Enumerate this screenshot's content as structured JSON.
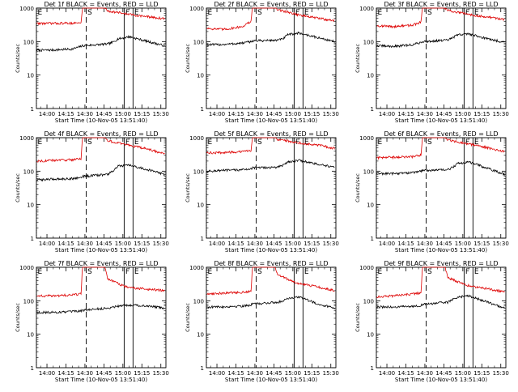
{
  "figure": {
    "colors": {
      "events": "#000000",
      "lld": "#dd0000",
      "axes": "#000000",
      "background": "#ffffff"
    },
    "ylabel": "Counts/sec",
    "xlabel": "Start Time (10-Nov-05 13:51:40)",
    "y_tick_labels": [
      "1",
      "10",
      "100",
      "1000"
    ],
    "x_tick_labels": [
      "14:00",
      "14:15",
      "14:30",
      "14:45",
      "15:00",
      "15:15",
      "15:30"
    ],
    "markers": [
      "E",
      "S",
      "F",
      "E"
    ]
  },
  "chart_data": [
    {
      "type": "line",
      "title": "Det 1f BLACK = Events, RED = LLD",
      "xlabel": "Start Time (10-Nov-05 13:51:40)",
      "ylabel": "Counts/sec",
      "yscale": "log",
      "ylim": [
        1,
        1000
      ],
      "xlim": [
        "13:51:40",
        "15:34:00"
      ],
      "series": [
        {
          "name": "Events",
          "color": "#000000",
          "x": [
            "13:52",
            "14:05",
            "14:20",
            "14:27",
            "14:28",
            "14:48",
            "14:52",
            "14:56",
            "15:05",
            "15:20",
            "15:33"
          ],
          "y": [
            55,
            56,
            60,
            72,
            75,
            85,
            95,
            120,
            140,
            100,
            75
          ]
        },
        {
          "name": "LLD",
          "color": "#dd0000",
          "x": [
            "13:52",
            "14:05",
            "14:20",
            "14:27",
            "14:28",
            "14:46",
            "14:48",
            "15:00",
            "15:05",
            "15:20",
            "15:33"
          ],
          "y": [
            350,
            350,
            355,
            360,
            1000,
            1000,
            820,
            700,
            650,
            550,
            480
          ]
        }
      ],
      "event_markers": [
        {
          "label": "E",
          "time": "13:51:40",
          "style": "dotted"
        },
        {
          "label": "S",
          "time": "14:31",
          "style": "dashed"
        },
        {
          "label": "F",
          "time": "15:01",
          "style": "solid"
        },
        {
          "label": "E",
          "time": "15:08",
          "style": "solid"
        }
      ]
    },
    {
      "type": "line",
      "title": "Det 2f BLACK = Events, RED = LLD",
      "xlabel": "Start Time (10-Nov-05 13:51:40)",
      "ylabel": "Counts/sec",
      "yscale": "log",
      "ylim": [
        1,
        1000
      ],
      "xlim": [
        "13:51:40",
        "15:34:00"
      ],
      "series": [
        {
          "name": "Events",
          "color": "#000000",
          "x": [
            "13:52",
            "14:05",
            "14:20",
            "14:27",
            "14:28",
            "14:48",
            "14:52",
            "14:56",
            "15:05",
            "15:20",
            "15:33"
          ],
          "y": [
            80,
            82,
            90,
            100,
            105,
            110,
            120,
            160,
            180,
            130,
            100
          ]
        },
        {
          "name": "LLD",
          "color": "#dd0000",
          "x": [
            "13:52",
            "14:05",
            "14:20",
            "14:27",
            "14:28",
            "14:46",
            "14:48",
            "15:00",
            "15:05",
            "15:20",
            "15:33"
          ],
          "y": [
            250,
            230,
            280,
            400,
            1000,
            1000,
            900,
            700,
            620,
            500,
            420
          ]
        }
      ],
      "event_markers": [
        {
          "label": "E",
          "time": "13:51:40",
          "style": "dotted"
        },
        {
          "label": "S",
          "time": "14:31",
          "style": "dashed"
        },
        {
          "label": "F",
          "time": "15:01",
          "style": "solid"
        },
        {
          "label": "E",
          "time": "15:08",
          "style": "solid"
        }
      ]
    },
    {
      "type": "line",
      "title": "Det 3f BLACK = Events, RED = LLD",
      "xlabel": "Start Time (10-Nov-05 13:51:40)",
      "ylabel": "Counts/sec",
      "yscale": "log",
      "ylim": [
        1,
        1000
      ],
      "xlim": [
        "13:51:40",
        "15:34:00"
      ],
      "series": [
        {
          "name": "Events",
          "color": "#000000",
          "x": [
            "13:52",
            "14:05",
            "14:20",
            "14:27",
            "14:28",
            "14:48",
            "14:52",
            "14:56",
            "15:05",
            "15:20",
            "15:33"
          ],
          "y": [
            75,
            72,
            80,
            95,
            100,
            110,
            130,
            160,
            170,
            120,
            95
          ]
        },
        {
          "name": "LLD",
          "color": "#dd0000",
          "x": [
            "13:52",
            "14:05",
            "14:20",
            "14:27",
            "14:28",
            "14:46",
            "14:48",
            "15:00",
            "15:05",
            "15:20",
            "15:33"
          ],
          "y": [
            300,
            280,
            310,
            380,
            1000,
            1000,
            850,
            700,
            650,
            540,
            460
          ]
        }
      ],
      "event_markers": [
        {
          "label": "E",
          "time": "13:51:40",
          "style": "dotted"
        },
        {
          "label": "S",
          "time": "14:31",
          "style": "dashed"
        },
        {
          "label": "F",
          "time": "15:01",
          "style": "solid"
        },
        {
          "label": "E",
          "time": "15:08",
          "style": "solid"
        }
      ]
    },
    {
      "type": "line",
      "title": "Det 4f BLACK = Events, RED = LLD",
      "xlabel": "Start Time (10-Nov-05 13:51:40)",
      "ylabel": "Counts/sec",
      "yscale": "log",
      "ylim": [
        1,
        1000
      ],
      "xlim": [
        "13:51:40",
        "15:34:00"
      ],
      "series": [
        {
          "name": "Events",
          "color": "#000000",
          "x": [
            "13:52",
            "14:05",
            "14:20",
            "14:27",
            "14:28",
            "14:48",
            "14:52",
            "14:56",
            "15:05",
            "15:20",
            "15:33"
          ],
          "y": [
            55,
            58,
            60,
            65,
            70,
            80,
            100,
            140,
            150,
            110,
            80
          ]
        },
        {
          "name": "LLD",
          "color": "#dd0000",
          "x": [
            "13:52",
            "14:05",
            "14:20",
            "14:27",
            "14:28",
            "14:46",
            "14:48",
            "15:00",
            "15:05",
            "15:20",
            "15:33"
          ],
          "y": [
            200,
            210,
            220,
            240,
            1000,
            1000,
            800,
            650,
            600,
            450,
            330
          ]
        }
      ],
      "event_markers": [
        {
          "label": "E",
          "time": "13:51:40",
          "style": "dotted"
        },
        {
          "label": "S",
          "time": "14:31",
          "style": "dashed"
        },
        {
          "label": "F",
          "time": "15:01",
          "style": "solid"
        },
        {
          "label": "E",
          "time": "15:08",
          "style": "solid"
        }
      ]
    },
    {
      "type": "line",
      "title": "Det 5f BLACK = Events, RED = LLD",
      "xlabel": "Start Time (10-Nov-05 13:51:40)",
      "ylabel": "Counts/sec",
      "yscale": "log",
      "ylim": [
        1,
        1000
      ],
      "xlim": [
        "13:51:40",
        "15:34:00"
      ],
      "series": [
        {
          "name": "Events",
          "color": "#000000",
          "x": [
            "13:52",
            "14:05",
            "14:20",
            "14:27",
            "14:28",
            "14:48",
            "14:52",
            "14:56",
            "15:05",
            "15:20",
            "15:33"
          ],
          "y": [
            100,
            105,
            110,
            120,
            125,
            130,
            150,
            190,
            210,
            160,
            130
          ]
        },
        {
          "name": "LLD",
          "color": "#dd0000",
          "x": [
            "13:52",
            "14:05",
            "14:20",
            "14:27",
            "14:28",
            "14:46",
            "14:48",
            "15:00",
            "15:05",
            "15:20",
            "15:33"
          ],
          "y": [
            350,
            360,
            380,
            420,
            1000,
            1000,
            900,
            750,
            700,
            600,
            480
          ]
        }
      ],
      "event_markers": [
        {
          "label": "E",
          "time": "13:51:40",
          "style": "dotted"
        },
        {
          "label": "S",
          "time": "14:31",
          "style": "dashed"
        },
        {
          "label": "F",
          "time": "15:01",
          "style": "solid"
        },
        {
          "label": "E",
          "time": "15:08",
          "style": "solid"
        }
      ]
    },
    {
      "type": "line",
      "title": "Det 6f BLACK = Events, RED = LLD",
      "xlabel": "Start Time (10-Nov-05 13:51:40)",
      "ylabel": "Counts/sec",
      "yscale": "log",
      "ylim": [
        1,
        1000
      ],
      "xlim": [
        "13:51:40",
        "15:34:00"
      ],
      "series": [
        {
          "name": "Events",
          "color": "#000000",
          "x": [
            "13:52",
            "14:05",
            "14:20",
            "14:27",
            "14:28",
            "14:48",
            "14:52",
            "14:56",
            "15:05",
            "15:20",
            "15:33"
          ],
          "y": [
            85,
            85,
            90,
            100,
            105,
            110,
            130,
            170,
            190,
            120,
            80
          ]
        },
        {
          "name": "LLD",
          "color": "#dd0000",
          "x": [
            "13:52",
            "14:05",
            "14:20",
            "14:27",
            "14:28",
            "14:46",
            "14:48",
            "15:00",
            "15:05",
            "15:20",
            "15:33"
          ],
          "y": [
            250,
            260,
            270,
            300,
            1000,
            1000,
            850,
            700,
            650,
            500,
            380
          ]
        }
      ],
      "event_markers": [
        {
          "label": "E",
          "time": "13:51:40",
          "style": "dotted"
        },
        {
          "label": "S",
          "time": "14:31",
          "style": "dashed"
        },
        {
          "label": "F",
          "time": "15:01",
          "style": "solid"
        },
        {
          "label": "E",
          "time": "15:08",
          "style": "solid"
        }
      ]
    },
    {
      "type": "line",
      "title": "Det 7f BLACK = Events, RED = LLD",
      "xlabel": "Start Time (10-Nov-05 13:51:40)",
      "ylabel": "Counts/sec",
      "yscale": "log",
      "ylim": [
        1,
        1000
      ],
      "xlim": [
        "13:51:40",
        "15:34:00"
      ],
      "series": [
        {
          "name": "Events",
          "color": "#000000",
          "x": [
            "13:52",
            "14:05",
            "14:20",
            "14:27",
            "14:28",
            "14:48",
            "14:52",
            "14:56",
            "15:05",
            "15:20",
            "15:33"
          ],
          "y": [
            45,
            45,
            47,
            50,
            52,
            60,
            65,
            70,
            75,
            70,
            60
          ]
        },
        {
          "name": "LLD",
          "color": "#dd0000",
          "x": [
            "13:52",
            "14:05",
            "14:20",
            "14:27",
            "14:28",
            "14:46",
            "14:48",
            "15:00",
            "15:05",
            "15:20",
            "15:33"
          ],
          "y": [
            140,
            140,
            150,
            160,
            1000,
            1000,
            450,
            280,
            250,
            220,
            200
          ]
        }
      ],
      "event_markers": [
        {
          "label": "E",
          "time": "13:51:40",
          "style": "dotted"
        },
        {
          "label": "S",
          "time": "14:31",
          "style": "dashed"
        },
        {
          "label": "F",
          "time": "15:01",
          "style": "solid"
        },
        {
          "label": "E",
          "time": "15:08",
          "style": "solid"
        }
      ]
    },
    {
      "type": "line",
      "title": "Det 8f BLACK = Events, RED = LLD",
      "xlabel": "Start Time (10-Nov-05 13:51:40)",
      "ylabel": "Counts/sec",
      "yscale": "log",
      "ylim": [
        1,
        1000
      ],
      "xlim": [
        "13:51:40",
        "15:34:00"
      ],
      "series": [
        {
          "name": "Events",
          "color": "#000000",
          "x": [
            "13:52",
            "14:05",
            "14:20",
            "14:27",
            "14:28",
            "14:48",
            "14:52",
            "14:56",
            "15:05",
            "15:20",
            "15:33"
          ],
          "y": [
            65,
            66,
            70,
            75,
            80,
            90,
            100,
            120,
            130,
            80,
            60
          ]
        },
        {
          "name": "LLD",
          "color": "#dd0000",
          "x": [
            "13:52",
            "14:05",
            "14:20",
            "14:27",
            "14:28",
            "14:46",
            "14:48",
            "15:00",
            "15:05",
            "15:20",
            "15:33"
          ],
          "y": [
            160,
            170,
            180,
            190,
            1000,
            1000,
            600,
            380,
            320,
            260,
            200
          ]
        }
      ],
      "event_markers": [
        {
          "label": "E",
          "time": "13:51:40",
          "style": "dotted"
        },
        {
          "label": "S",
          "time": "14:31",
          "style": "dashed"
        },
        {
          "label": "F",
          "time": "15:01",
          "style": "solid"
        },
        {
          "label": "E",
          "time": "15:08",
          "style": "solid"
        }
      ]
    },
    {
      "type": "line",
      "title": "Det 9f BLACK = Events, RED = LLD",
      "xlabel": "Start Time (10-Nov-05 13:51:40)",
      "ylabel": "Counts/sec",
      "yscale": "log",
      "ylim": [
        1,
        1000
      ],
      "xlim": [
        "13:51:40",
        "15:34:00"
      ],
      "series": [
        {
          "name": "Events",
          "color": "#000000",
          "x": [
            "13:52",
            "14:05",
            "14:20",
            "14:27",
            "14:28",
            "14:48",
            "14:52",
            "14:56",
            "15:05",
            "15:20",
            "15:33"
          ],
          "y": [
            65,
            65,
            68,
            72,
            78,
            90,
            110,
            130,
            140,
            90,
            60
          ]
        },
        {
          "name": "LLD",
          "color": "#dd0000",
          "x": [
            "13:52",
            "14:05",
            "14:20",
            "14:27",
            "14:28",
            "14:46",
            "14:48",
            "15:00",
            "15:05",
            "15:20",
            "15:33"
          ],
          "y": [
            130,
            140,
            160,
            170,
            1000,
            1000,
            500,
            320,
            280,
            230,
            180
          ]
        }
      ],
      "event_markers": [
        {
          "label": "E",
          "time": "13:51:40",
          "style": "dotted"
        },
        {
          "label": "S",
          "time": "14:31",
          "style": "dashed"
        },
        {
          "label": "F",
          "time": "15:01",
          "style": "solid"
        },
        {
          "label": "E",
          "time": "15:08",
          "style": "solid"
        }
      ]
    }
  ]
}
